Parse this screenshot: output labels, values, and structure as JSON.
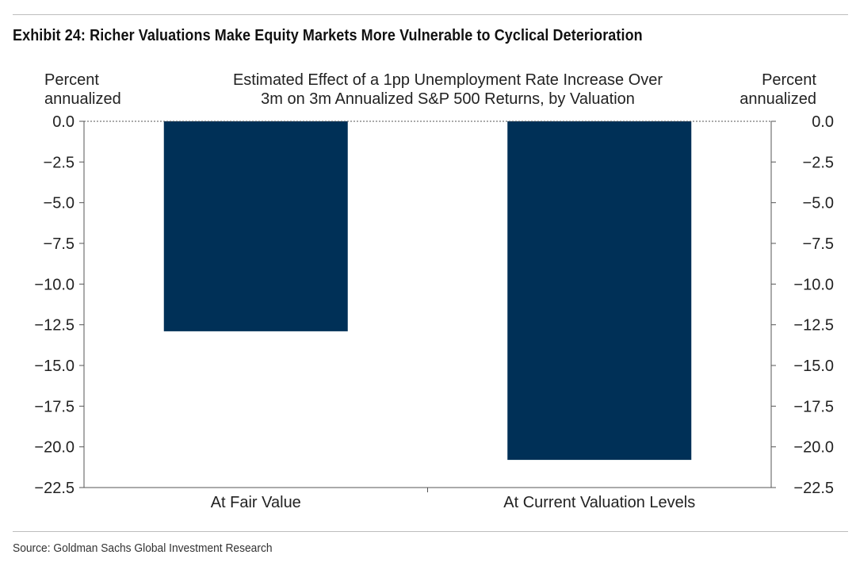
{
  "exhibit_title": "Exhibit 24: Richer Valuations Make Equity Markets More Vulnerable to Cyclical Deterioration",
  "source": "Source: Goldman Sachs Global Investment Research",
  "chart_data": {
    "type": "bar",
    "title_lines": [
      "Estimated Effect of a 1pp Unemployment Rate Increase Over",
      "3m on 3m Annualized S&P 500 Returns, by Valuation"
    ],
    "left_axis_label_lines": [
      "Percent",
      "annualized"
    ],
    "right_axis_label_lines": [
      "Percent",
      "annualized"
    ],
    "categories": [
      "At Fair Value",
      "At Current Valuation Levels"
    ],
    "values": [
      -12.9,
      -20.8
    ],
    "ylim": [
      -22.5,
      0
    ],
    "yticks": [
      0.0,
      -2.5,
      -5.0,
      -7.5,
      -10.0,
      -12.5,
      -15.0,
      -17.5,
      -20.0,
      -22.5
    ],
    "ytick_labels": [
      "0.0",
      "-2.5",
      "-5.0",
      "-7.5",
      "-10.0",
      "-12.5",
      "-15.0",
      "-17.5",
      "-20.0",
      "-22.5"
    ],
    "bar_color": "#003057",
    "zero_line": "dashed",
    "grid": false,
    "legend": "none"
  }
}
